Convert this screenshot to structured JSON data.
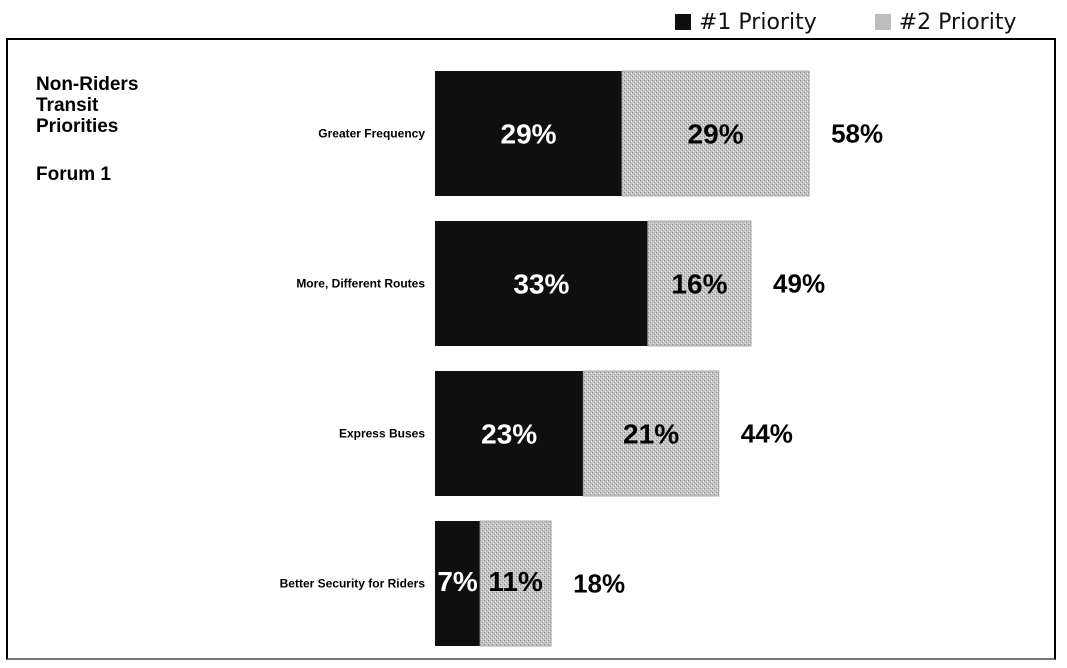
{
  "legend": {
    "items": [
      {
        "label": "#1 Priority",
        "color": "#0f0f0f"
      },
      {
        "label": "#2 Priority",
        "color": "#bdbdbd"
      }
    ]
  },
  "title_lines": [
    "Non-Riders",
    "Transit",
    "Priorities"
  ],
  "forum_label": "Forum 1",
  "colors": {
    "priority1": "#0f0f0f",
    "priority2": "#bdbdbd",
    "label_on_dark": "#ffffff",
    "label_on_light": "#000000"
  },
  "chart_data": {
    "type": "bar",
    "orientation": "horizontal",
    "stacked": true,
    "categories": [
      "Greater Frequency",
      "More, Different Routes",
      "Express Buses",
      "Better Security for Riders"
    ],
    "series": [
      {
        "name": "#1 Priority",
        "values": [
          29,
          33,
          23,
          7
        ],
        "labels": [
          "29%",
          "33%",
          "23%",
          "7%"
        ]
      },
      {
        "name": "#2 Priority",
        "values": [
          29,
          16,
          21,
          11
        ],
        "labels": [
          "29%",
          "16%",
          "21%",
          "11%"
        ]
      }
    ],
    "totals": [
      58,
      49,
      44,
      18
    ],
    "total_labels": [
      "58%",
      "49%",
      "44%",
      "18%"
    ],
    "unit": "%",
    "legend_position": "top-right",
    "grid": false
  }
}
